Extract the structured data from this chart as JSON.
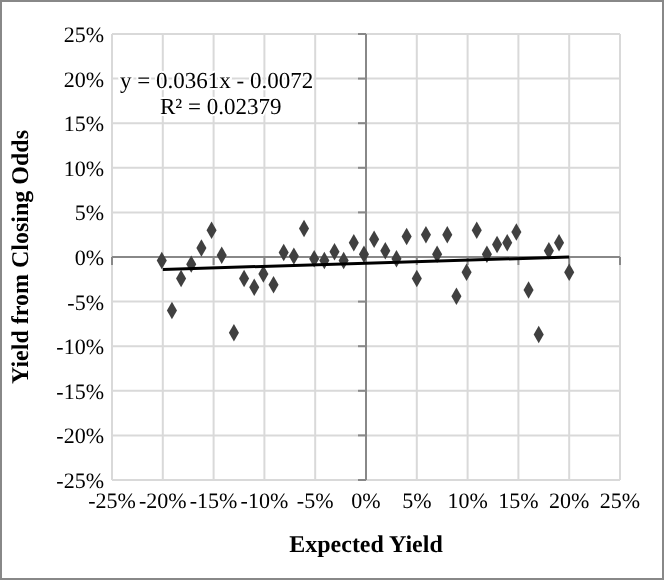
{
  "chart_data": {
    "type": "scatter",
    "xlabel": "Expected Yield",
    "ylabel": "Yield from Closing Odds",
    "annotations": [
      "y = 0.0361x - 0.0072",
      "R² = 0.02379"
    ],
    "x": [
      -0.201,
      -0.191,
      -0.182,
      -0.172,
      -0.162,
      -0.152,
      -0.142,
      -0.13,
      -0.12,
      -0.11,
      -0.101,
      -0.091,
      -0.081,
      -0.071,
      -0.061,
      -0.051,
      -0.041,
      -0.031,
      -0.022,
      -0.012,
      -0.002,
      0.008,
      0.019,
      0.03,
      0.04,
      0.05,
      0.059,
      0.07,
      0.08,
      0.089,
      0.099,
      0.109,
      0.119,
      0.129,
      0.139,
      0.148,
      0.16,
      0.17,
      0.18,
      0.19,
      0.2
    ],
    "series": [
      {
        "color": "#404040",
        "marker": "diamond",
        "values": [
          -0.004,
          -0.06,
          -0.024,
          -0.008,
          0.01,
          0.03,
          0.002,
          -0.085,
          -0.024,
          -0.034,
          -0.019,
          -0.031,
          0.005,
          0.001,
          0.032,
          -0.002,
          -0.004,
          0.006,
          -0.004,
          0.016,
          0.003,
          0.02,
          0.007,
          -0.002,
          0.023,
          -0.024,
          0.025,
          0.003,
          0.025,
          -0.044,
          -0.017,
          0.03,
          0.003,
          0.014,
          0.016,
          0.028,
          -0.037,
          -0.087,
          0.007,
          0.016,
          -0.017
        ]
      },
      {
        "type": "line",
        "color": "#000000",
        "marker": "none",
        "x": [
          -0.2,
          0.2
        ],
        "values": [
          -0.014,
          0.0
        ]
      }
    ],
    "xlim": [
      -0.25,
      0.25
    ],
    "ylim": [
      -0.25,
      0.25
    ],
    "xticks": [
      {
        "value": -0.25,
        "label": "-25%"
      },
      {
        "value": -0.2,
        "label": "-20%"
      },
      {
        "value": -0.15,
        "label": "-15%"
      },
      {
        "value": -0.1,
        "label": "-10%"
      },
      {
        "value": -0.05,
        "label": "-5%"
      },
      {
        "value": 0,
        "label": "0%"
      },
      {
        "value": 0.05,
        "label": "5%"
      },
      {
        "value": 0.1,
        "label": "10%"
      },
      {
        "value": 0.15,
        "label": "15%"
      },
      {
        "value": 0.2,
        "label": "20%"
      },
      {
        "value": 0.25,
        "label": "25%"
      }
    ],
    "yticks": [
      {
        "value": -0.25,
        "label": "-25%"
      },
      {
        "value": -0.2,
        "label": "-20%"
      },
      {
        "value": -0.15,
        "label": "-15%"
      },
      {
        "value": -0.1,
        "label": "-10%"
      },
      {
        "value": -0.05,
        "label": "-5%"
      },
      {
        "value": 0,
        "label": "0%"
      },
      {
        "value": 0.05,
        "label": "5%"
      },
      {
        "value": 0.1,
        "label": "10%"
      },
      {
        "value": 0.15,
        "label": "15%"
      },
      {
        "value": 0.2,
        "label": "20%"
      },
      {
        "value": 0.25,
        "label": "25%"
      }
    ],
    "grid": true
  }
}
